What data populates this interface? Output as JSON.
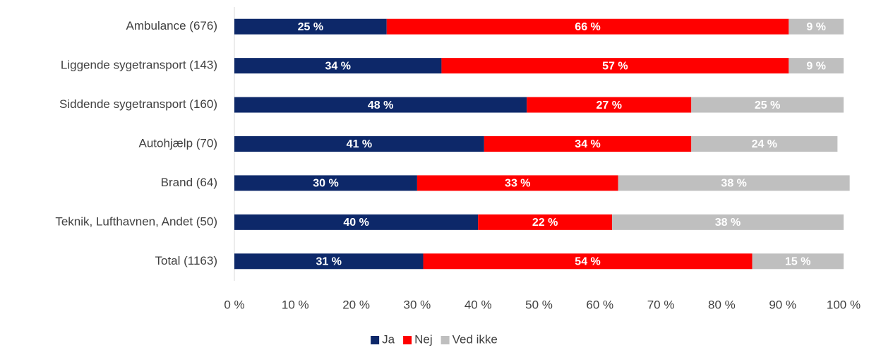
{
  "chart_data": {
    "type": "stacked_bar_horizontal",
    "categories": [
      "Ambulance (676)",
      "Liggende sygetransport (143)",
      "Siddende sygetransport (160)",
      "Autohjælp (70)",
      "Brand (64)",
      "Teknik, Lufthavnen, Andet (50)",
      "Total (1163)"
    ],
    "series": [
      {
        "name": "Ja",
        "color": "#0d2869",
        "values": [
          25,
          34,
          48,
          41,
          30,
          40,
          31
        ],
        "value_labels": [
          "25 %",
          "34 %",
          "48 %",
          "41 %",
          "30 %",
          "40 %",
          "31 %"
        ]
      },
      {
        "name": "Nej",
        "color": "#ff0000",
        "values": [
          66,
          57,
          27,
          34,
          33,
          22,
          54
        ],
        "value_labels": [
          "66 %",
          "57 %",
          "27 %",
          "34 %",
          "33 %",
          "22 %",
          "54 %"
        ]
      },
      {
        "name": "Ved ikke",
        "color": "#bfbfbf",
        "values": [
          9,
          9,
          25,
          24,
          38,
          38,
          15
        ],
        "value_labels": [
          "9 %",
          "9 %",
          "25 %",
          "24 %",
          "38 %",
          "38 %",
          "15 %"
        ]
      }
    ],
    "xlim": [
      0,
      100
    ],
    "xticks": [
      {
        "value": 0,
        "label": "0 %"
      },
      {
        "value": 10,
        "label": "10 %"
      },
      {
        "value": 20,
        "label": "20 %"
      },
      {
        "value": 30,
        "label": "30 %"
      },
      {
        "value": 40,
        "label": "40 %"
      },
      {
        "value": 50,
        "label": "50 %"
      },
      {
        "value": 60,
        "label": "60 %"
      },
      {
        "value": 70,
        "label": "70 %"
      },
      {
        "value": 80,
        "label": "80 %"
      },
      {
        "value": 90,
        "label": "90 %"
      },
      {
        "value": 100,
        "label": "100 %"
      }
    ],
    "legend": "bottom"
  }
}
